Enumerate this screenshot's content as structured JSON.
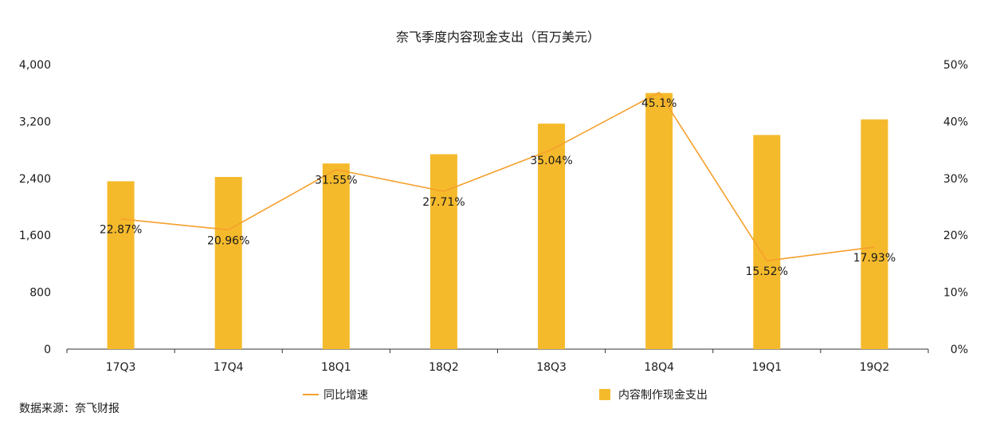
{
  "chart_data": {
    "type": "bar",
    "title": "奈飞季度内容现金支出（百万美元）",
    "categories": [
      "17Q3",
      "17Q4",
      "18Q1",
      "18Q2",
      "18Q3",
      "18Q4",
      "19Q1",
      "19Q2"
    ],
    "series": [
      {
        "name": "内容制作现金支出",
        "type": "bar",
        "axis": "left",
        "color": "#F5BA2C",
        "values": [
          2360,
          2420,
          2610,
          2740,
          3170,
          3600,
          3010,
          3230
        ]
      },
      {
        "name": "同比增速",
        "type": "line",
        "axis": "right",
        "color": "#F5A02C",
        "values": [
          22.87,
          20.96,
          31.55,
          27.71,
          35.04,
          45.1,
          15.52,
          17.93
        ],
        "labels": [
          "22.87%",
          "20.96%",
          "31.55%",
          "27.71%",
          "35.04%",
          "45.1%",
          "15.52%",
          "17.93%"
        ]
      }
    ],
    "y_left": {
      "min": 0,
      "max": 4000,
      "ticks": [
        "0",
        "800",
        "1,600",
        "2,400",
        "3,200",
        "4,000"
      ]
    },
    "y_right": {
      "min": 0,
      "max": 50,
      "ticks": [
        "0%",
        "10%",
        "20%",
        "30%",
        "40%",
        "50%"
      ]
    },
    "grid": false,
    "legend_placement": "bottom"
  },
  "source_note": "数据来源：奈飞财报"
}
